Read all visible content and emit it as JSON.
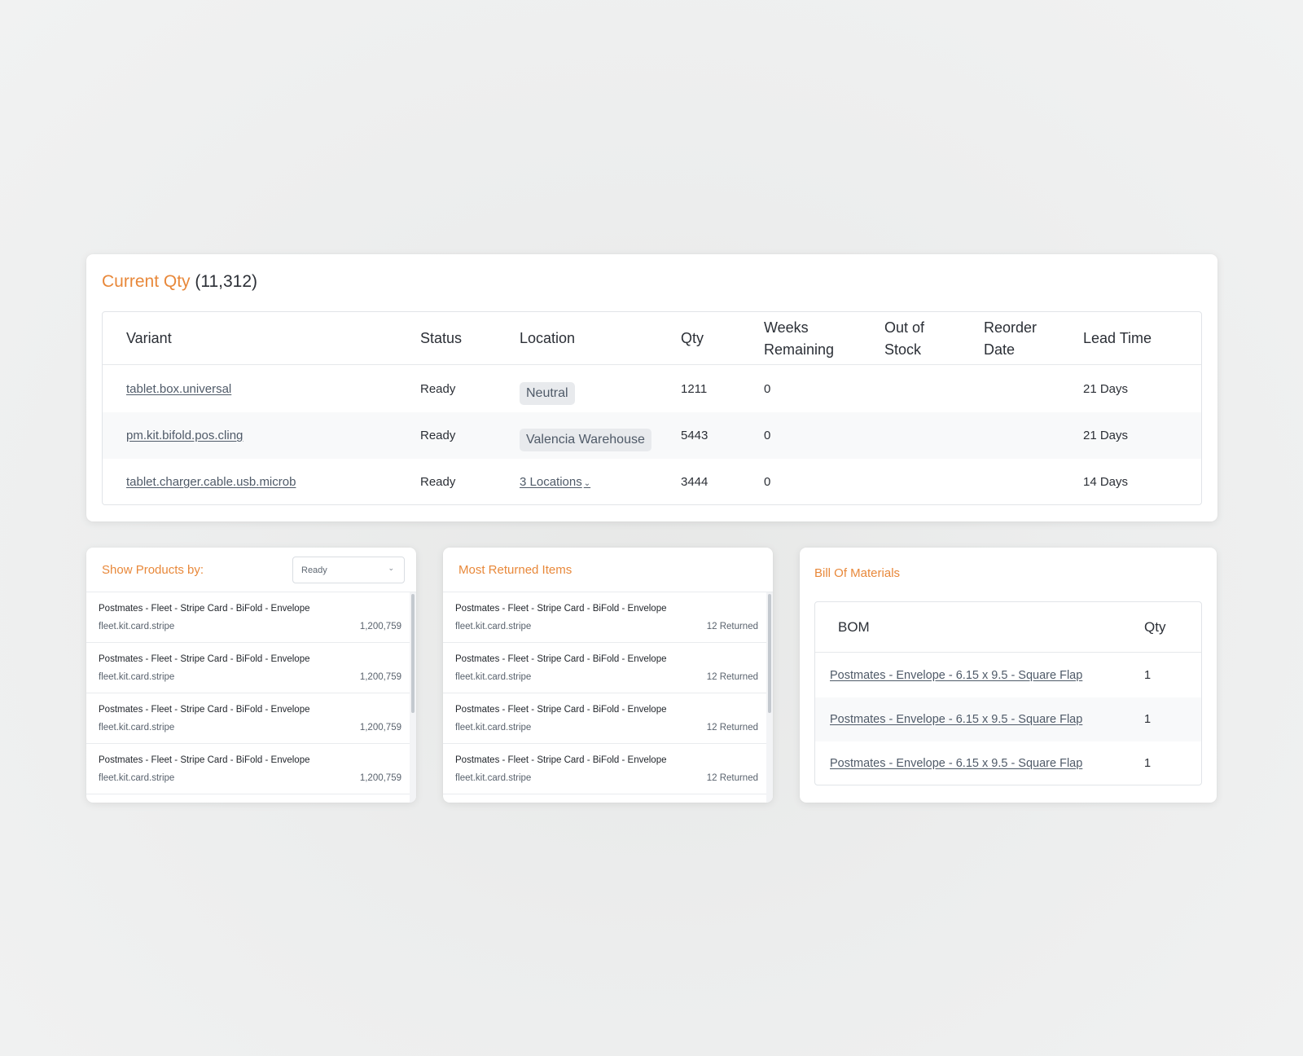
{
  "current_qty": {
    "title": "Current Qty",
    "count": "(11,312)",
    "columns": {
      "variant": "Variant",
      "status": "Status",
      "location": "Location",
      "qty": "Qty",
      "weeks_remaining_1": "Weeks",
      "weeks_remaining_2": "Remaining",
      "out_of_stock_1": "Out of",
      "out_of_stock_2": "Stock",
      "reorder_date_1": "Reorder",
      "reorder_date_2": "Date",
      "lead_time": "Lead Time"
    },
    "rows": [
      {
        "variant": "tablet.box.universal",
        "status": "Ready",
        "location": "Neutral",
        "qty": "1211",
        "weeks_remaining": "0",
        "out_of_stock": "",
        "reorder_date": "",
        "lead_time": "21 Days"
      },
      {
        "variant": "pm.kit.bifold.pos.cling",
        "status": "Ready",
        "location": "Valencia Warehouse",
        "qty": "5443",
        "weeks_remaining": "0",
        "out_of_stock": "",
        "reorder_date": "",
        "lead_time": "21 Days"
      },
      {
        "variant": "tablet.charger.cable.usb.microb",
        "status": "Ready",
        "location": "3 Locations",
        "qty": "3444",
        "weeks_remaining": "0",
        "out_of_stock": "",
        "reorder_date": "",
        "lead_time": "14 Days"
      }
    ]
  },
  "show_products": {
    "title": "Show Products by:",
    "select_value": "Ready",
    "items": [
      {
        "name": "Postmates - Fleet - Stripe Card - BiFold - Envelope",
        "sku": "fleet.kit.card.stripe",
        "value": "1,200,759"
      },
      {
        "name": "Postmates - Fleet - Stripe Card - BiFold - Envelope",
        "sku": "fleet.kit.card.stripe",
        "value": "1,200,759"
      },
      {
        "name": "Postmates - Fleet - Stripe Card - BiFold - Envelope",
        "sku": "fleet.kit.card.stripe",
        "value": "1,200,759"
      },
      {
        "name": "Postmates - Fleet - Stripe Card - BiFold - Envelope",
        "sku": "fleet.kit.card.stripe",
        "value": "1,200,759"
      }
    ]
  },
  "most_returned": {
    "title": "Most Returned Items",
    "items": [
      {
        "name": "Postmates - Fleet - Stripe Card - BiFold - Envelope",
        "sku": "fleet.kit.card.stripe",
        "value": "12 Returned"
      },
      {
        "name": "Postmates - Fleet - Stripe Card - BiFold - Envelope",
        "sku": "fleet.kit.card.stripe",
        "value": "12 Returned"
      },
      {
        "name": "Postmates - Fleet - Stripe Card - BiFold - Envelope",
        "sku": "fleet.kit.card.stripe",
        "value": "12 Returned"
      },
      {
        "name": "Postmates - Fleet - Stripe Card - BiFold - Envelope",
        "sku": "fleet.kit.card.stripe",
        "value": "12 Returned"
      }
    ]
  },
  "bill_of_materials": {
    "title": "Bill Of Materials",
    "columns": {
      "bom": "BOM",
      "qty": "Qty"
    },
    "rows": [
      {
        "name": "Postmates - Envelope - 6.15 x 9.5 - Square Flap",
        "qty": "1"
      },
      {
        "name": "Postmates - Envelope - 6.15 x 9.5 - Square Flap",
        "qty": "1"
      },
      {
        "name": "Postmates - Envelope - 6.15 x 9.5 - Square Flap",
        "qty": "1"
      }
    ]
  },
  "icons": {
    "dropdown": "chevron-down-icon"
  },
  "colors": {
    "accent": "#e8883a",
    "text": "#2b2f36",
    "link": "#4f5a68",
    "row_alt": "#f8f9fa"
  }
}
